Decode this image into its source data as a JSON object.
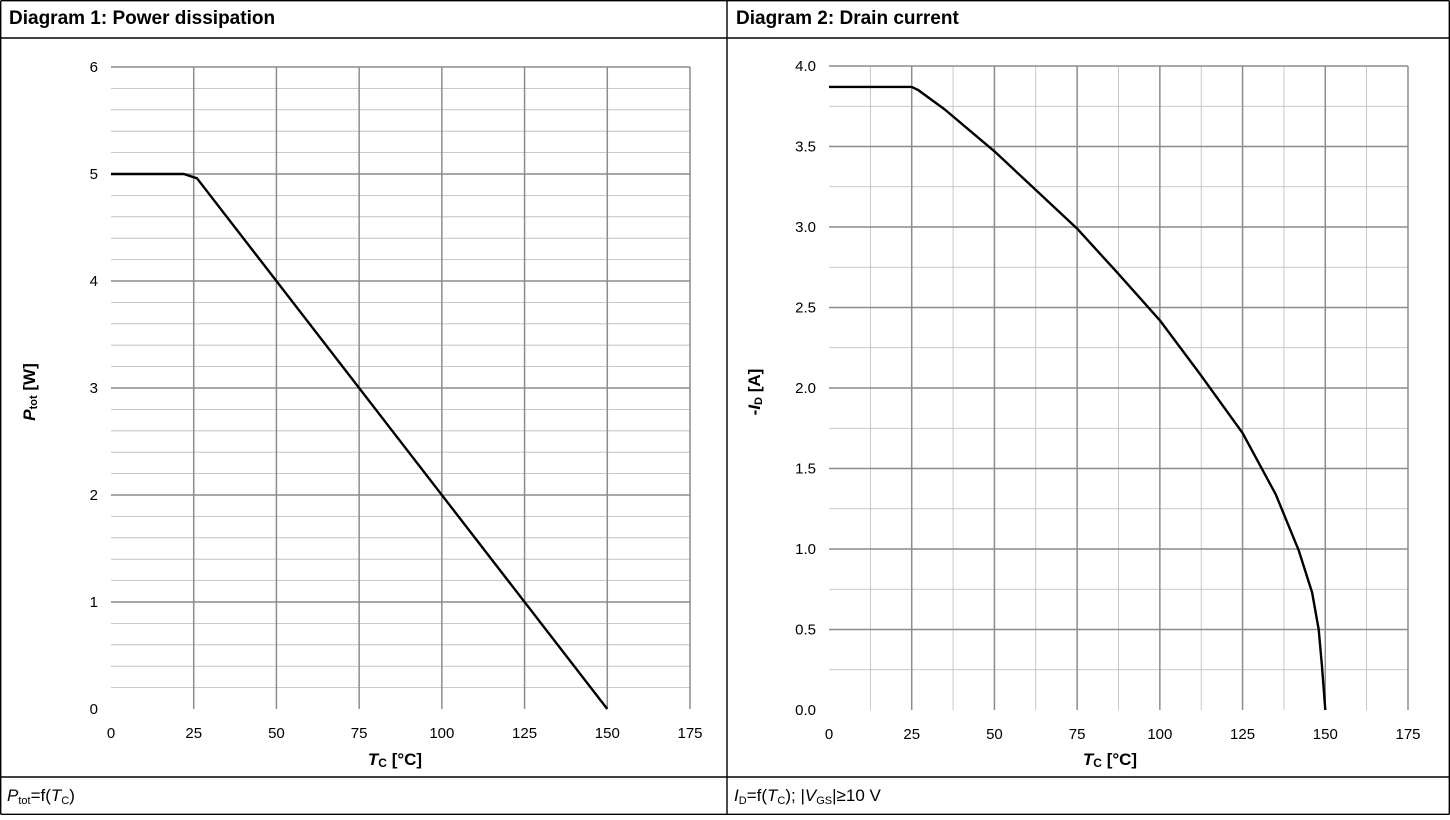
{
  "panels": [
    {
      "title": "Diagram 1: Power dissipation",
      "caption": {
        "sym": "P",
        "sym_sub": "tot",
        "eq": "=f(",
        "var": "T",
        "var_sub": "C",
        "rest": ")"
      }
    },
    {
      "title": "Diagram 2: Drain current",
      "caption": {
        "sym": "I",
        "sym_sub": "D",
        "eq": "=f(",
        "var": "T",
        "var_sub": "C",
        "rest": "); |",
        "sym2": "V",
        "sym2_sub": "GS",
        "rest2": "|≥10 V"
      }
    }
  ],
  "chart_data": [
    {
      "type": "line",
      "title": "Diagram 1: Power dissipation",
      "xlabel": "Tc [°C]",
      "ylabel": "Ptot [W]",
      "xlim": [
        0,
        175
      ],
      "ylim": [
        0,
        6
      ],
      "xticks": [
        0,
        25,
        50,
        75,
        100,
        125,
        150,
        175
      ],
      "yticks": [
        0,
        1,
        2,
        3,
        4,
        5,
        6
      ],
      "xtick_labels": [
        "0",
        "25",
        "50",
        "75",
        "100",
        "125",
        "150",
        "175"
      ],
      "ytick_labels": [
        "0",
        "1",
        "2",
        "3",
        "4",
        "5",
        "6"
      ],
      "grid": true,
      "series": [
        {
          "x": [
            0,
            22,
            26,
            150
          ],
          "y": [
            5.0,
            5.0,
            4.96,
            0
          ]
        }
      ]
    },
    {
      "type": "line",
      "title": "Diagram 2: Drain current",
      "xlabel": "Tc [°C]",
      "ylabel": "-ID [A]",
      "xlim": [
        0,
        175
      ],
      "ylim": [
        0,
        4.0
      ],
      "xticks": [
        0,
        25,
        50,
        75,
        100,
        125,
        150,
        175
      ],
      "yticks": [
        0,
        0.5,
        1.0,
        1.5,
        2.0,
        2.5,
        3.0,
        3.5,
        4.0
      ],
      "xtick_labels": [
        "0",
        "25",
        "50",
        "75",
        "100",
        "125",
        "150",
        "175"
      ],
      "ytick_labels": [
        "0.0",
        "0.5",
        "1.0",
        "1.5",
        "2.0",
        "2.5",
        "3.0",
        "3.5",
        "4.0"
      ],
      "grid": true,
      "series": [
        {
          "x": [
            0,
            25,
            27,
            35,
            50,
            62,
            75,
            87,
            100,
            112,
            125,
            135,
            142,
            146,
            148,
            149,
            150
          ],
          "y": [
            3.87,
            3.87,
            3.85,
            3.73,
            3.47,
            3.24,
            2.99,
            2.72,
            2.42,
            2.09,
            1.72,
            1.34,
            0.99,
            0.73,
            0.5,
            0.27,
            0
          ]
        }
      ]
    }
  ]
}
